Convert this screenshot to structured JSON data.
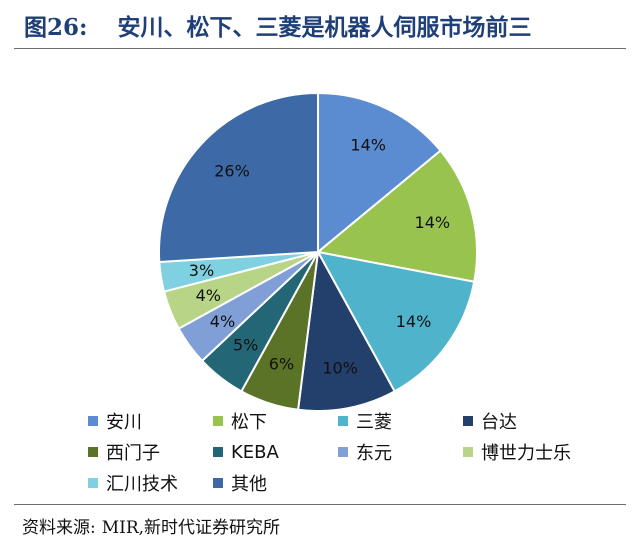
{
  "figure": {
    "number": "图26:",
    "title": "安川、松下、三菱是机器人伺服市场前三"
  },
  "chart_data": {
    "type": "pie",
    "title": "",
    "unit": "%",
    "legend_position": "bottom",
    "slices": [
      {
        "label": "安川",
        "value": 14,
        "data_label": "14%",
        "color": "#5b8bd0"
      },
      {
        "label": "松下",
        "value": 14,
        "data_label": "14%",
        "color": "#99c34f"
      },
      {
        "label": "三菱",
        "value": 14,
        "data_label": "14%",
        "color": "#4fb3cc"
      },
      {
        "label": "台达",
        "value": 10,
        "data_label": "10%",
        "color": "#233f6c"
      },
      {
        "label": "西门子",
        "value": 6,
        "data_label": "6%",
        "color": "#5a7326"
      },
      {
        "label": "KEBA",
        "value": 5,
        "data_label": "5%",
        "color": "#236676"
      },
      {
        "label": "东元",
        "value": 4,
        "data_label": "4%",
        "color": "#7f9fd6"
      },
      {
        "label": "博世力士乐",
        "value": 4,
        "data_label": "4%",
        "color": "#b8d486"
      },
      {
        "label": "汇川技术",
        "value": 3,
        "data_label": "3%",
        "color": "#7fd0e0"
      },
      {
        "label": "其他",
        "value": 26,
        "data_label": "26%",
        "color": "#3d6aa6"
      }
    ]
  },
  "source": {
    "label": "资料来源:",
    "text": "MIR,新时代证券研究所"
  }
}
